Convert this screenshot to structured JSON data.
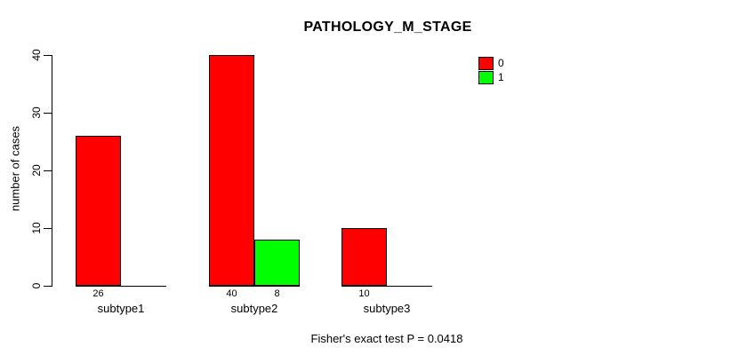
{
  "chart_data": {
    "type": "bar",
    "title": "PATHOLOGY_M_STAGE",
    "xlabel": "",
    "ylabel": "number of cases",
    "ylim": [
      0,
      40
    ],
    "yticks": [
      0,
      10,
      20,
      30,
      40
    ],
    "grid": false,
    "legend_position": "top-right",
    "categories": [
      "subtype1",
      "subtype2",
      "subtype3"
    ],
    "series": [
      {
        "name": "0",
        "color": "#FF0000",
        "values": [
          26,
          40,
          10
        ]
      },
      {
        "name": "1",
        "color": "#00FF00",
        "values": [
          0,
          8,
          0
        ]
      }
    ],
    "bar_border_color": "#000000",
    "caption": "Fisher's exact test P = 0.0418"
  }
}
